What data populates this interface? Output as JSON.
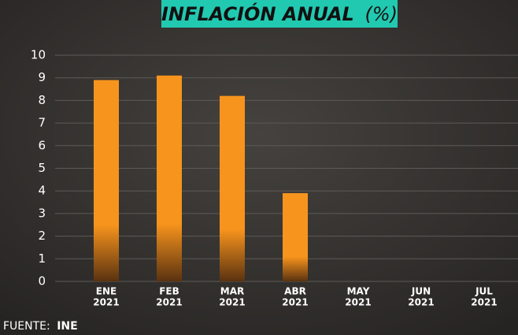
{
  "chart_data": {
    "type": "bar",
    "title": "INFLACIÓN ANUAL",
    "title_unit": "(%)",
    "categories": [
      [
        "ENE",
        "2021"
      ],
      [
        "FEB",
        "2021"
      ],
      [
        "MAR",
        "2021"
      ],
      [
        "ABR",
        "2021"
      ],
      [
        "MAY",
        "2021"
      ],
      [
        "JUN",
        "2021"
      ],
      [
        "JUL",
        "2021"
      ]
    ],
    "values": [
      8.9,
      9.1,
      8.2,
      3.9,
      null,
      null,
      null
    ],
    "color": "#f7941d",
    "ylim": [
      0,
      10
    ],
    "yticks": [
      0,
      1,
      2,
      3,
      4,
      5,
      6,
      7,
      8,
      9,
      10
    ],
    "grid": true,
    "source_label": "FUENTE:",
    "source": "INE"
  }
}
